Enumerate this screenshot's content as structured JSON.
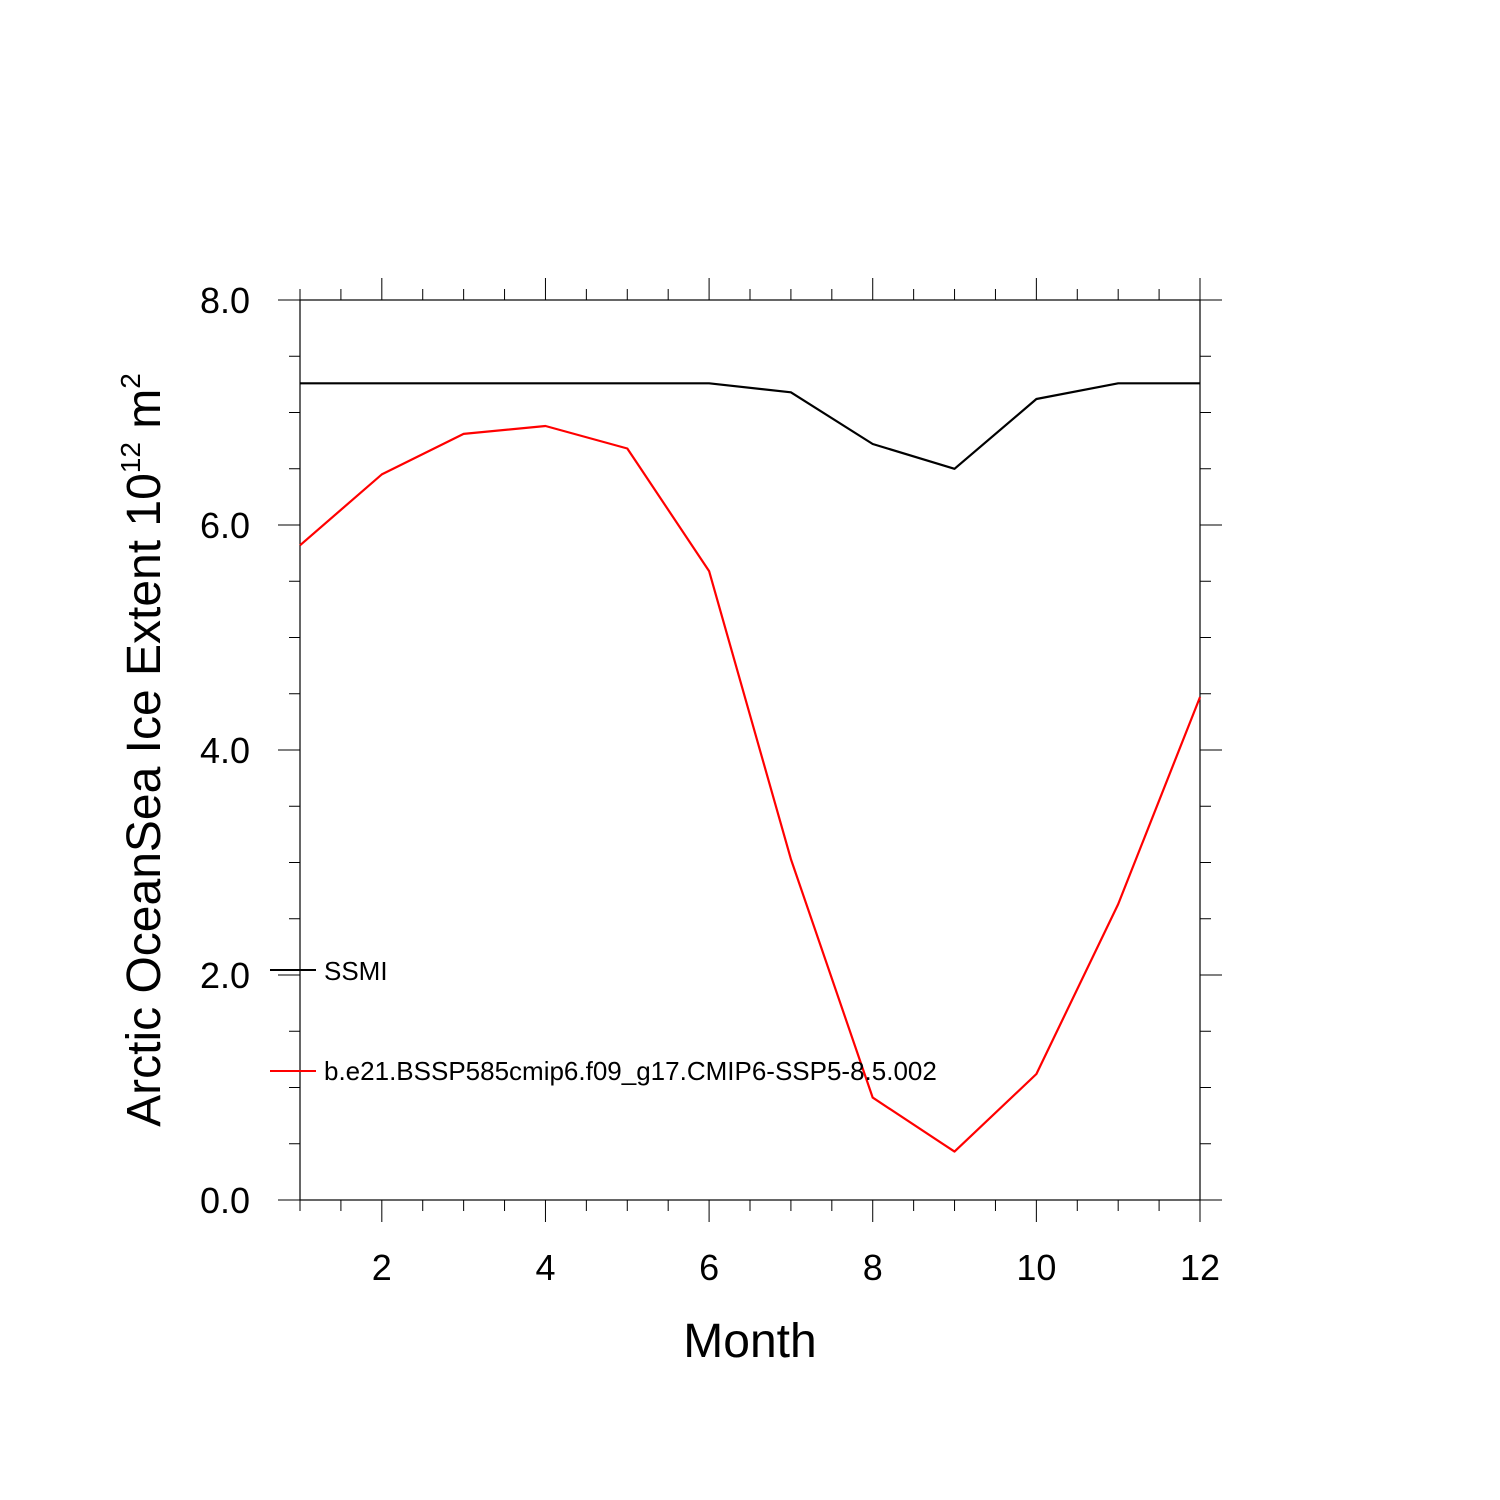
{
  "chart_data": {
    "type": "line",
    "title": "",
    "xlabel": "Month",
    "ylabel_main": "Arctic OceanSea Ice Extent 10",
    "ylabel_sup1": "12",
    "ylabel_unit": " m",
    "ylabel_sup2": "2",
    "xlim": [
      1,
      12
    ],
    "ylim": [
      0,
      8
    ],
    "x_ticks": [
      2,
      4,
      6,
      8,
      10,
      12
    ],
    "x_tick_labels": [
      "2",
      "4",
      "6",
      "8",
      "10",
      "12"
    ],
    "y_ticks": [
      0,
      2,
      4,
      6,
      8
    ],
    "y_tick_labels": [
      "0.0",
      "2.0",
      "4.0",
      "6.0",
      "8.0"
    ],
    "grid": false,
    "legend_position": "lower-left",
    "x": [
      1,
      2,
      3,
      4,
      5,
      6,
      7,
      8,
      9,
      10,
      11,
      12
    ],
    "series": [
      {
        "name": "SSMI",
        "color": "#000000",
        "values": [
          7.26,
          7.26,
          7.26,
          7.26,
          7.26,
          7.26,
          7.18,
          6.72,
          6.5,
          7.12,
          7.26,
          7.26
        ]
      },
      {
        "name": "b.e21.BSSP585cmip6.f09_g17.CMIP6-SSP5-8.5.002",
        "color": "#ff0000",
        "values": [
          5.82,
          6.45,
          6.81,
          6.88,
          6.68,
          5.59,
          3.03,
          0.91,
          0.43,
          1.12,
          2.63,
          4.47
        ]
      }
    ]
  }
}
